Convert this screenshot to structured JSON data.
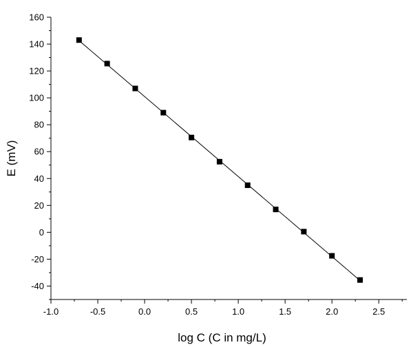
{
  "chart_data": {
    "type": "scatter",
    "title": "",
    "xlabel": "log C (C in mg/L)",
    "ylabel": "E (mV)",
    "xlim": [
      -1.0,
      2.8
    ],
    "ylim": [
      -50,
      160
    ],
    "x_ticks": [
      -1.0,
      -0.5,
      0.0,
      0.5,
      1.0,
      1.5,
      2.0,
      2.5
    ],
    "x_tick_labels": [
      "-1.0",
      "-0.5",
      "0.0",
      "0.5",
      "1.0",
      "1.5",
      "2.0",
      "2.5"
    ],
    "y_ticks": [
      -40,
      -20,
      0,
      20,
      40,
      60,
      80,
      100,
      120,
      140,
      160
    ],
    "y_tick_labels": [
      "-40",
      "-20",
      "0",
      "20",
      "40",
      "60",
      "80",
      "100",
      "120",
      "140",
      "160"
    ],
    "grid": false,
    "legend": "none",
    "series": [
      {
        "marker": "square",
        "color": "#000000",
        "line": "linear-fit",
        "x": [
          -0.7,
          -0.4,
          -0.1,
          0.2,
          0.5,
          0.8,
          1.1,
          1.4,
          1.7,
          2.0,
          2.3
        ],
        "y": [
          143,
          125.5,
          107,
          89,
          70.5,
          52.5,
          35,
          17,
          0.5,
          -17.5,
          -35.5
        ]
      }
    ]
  }
}
